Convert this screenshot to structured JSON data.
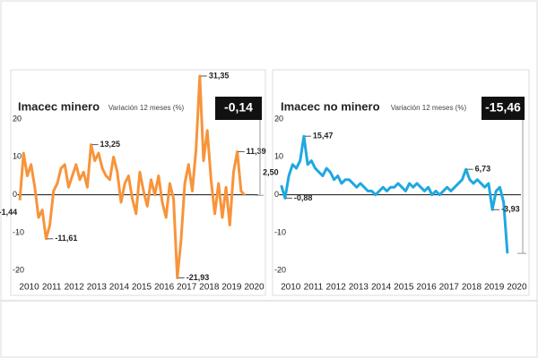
{
  "chart_data": [
    {
      "type": "line",
      "title": "Imacec minero",
      "subtitle": "Variación 12 meses (%)",
      "color": "#f7943b",
      "categories": [
        "2010",
        null,
        null,
        null,
        null,
        null,
        "2011",
        null,
        null,
        null,
        null,
        null,
        "2012",
        null,
        null,
        null,
        null,
        null,
        "2013",
        null,
        null,
        null,
        null,
        null,
        "2014",
        null,
        null,
        null,
        null,
        null,
        "2015",
        null,
        null,
        null,
        null,
        null,
        "2016",
        null,
        null,
        null,
        null,
        null,
        "2017",
        null,
        null,
        null,
        null,
        null,
        "2018",
        null,
        null,
        null,
        null,
        null,
        "2019",
        null,
        null,
        null,
        null,
        null,
        "2020"
      ],
      "values": [
        -1.44,
        11,
        5,
        8,
        2,
        -6,
        -4,
        -11.61,
        -8,
        1,
        3,
        7,
        8,
        2,
        5,
        8,
        4,
        6,
        2,
        13.25,
        9,
        11,
        7,
        5,
        4,
        10,
        6,
        -2,
        3,
        5,
        -1,
        -5,
        6,
        1,
        -3,
        4,
        0,
        5,
        -2,
        -6,
        3,
        -1,
        -21.93,
        -12,
        3,
        8,
        1,
        12,
        31.35,
        9,
        17,
        4,
        -5,
        3,
        -6,
        2,
        -8,
        6,
        11.39,
        1,
        -0.14
      ],
      "value_labels": [
        "-1,44",
        null,
        null,
        null,
        null,
        null,
        null,
        "-11,61",
        null,
        null,
        null,
        null,
        null,
        null,
        null,
        null,
        null,
        null,
        null,
        "13,25",
        null,
        null,
        null,
        null,
        null,
        null,
        null,
        null,
        null,
        null,
        null,
        null,
        null,
        null,
        null,
        null,
        null,
        null,
        null,
        null,
        null,
        null,
        "-21,93",
        null,
        null,
        null,
        null,
        null,
        "31,35",
        null,
        null,
        null,
        null,
        null,
        null,
        null,
        null,
        null,
        "11,39",
        null,
        "-0,14"
      ],
      "ylim": [
        -23,
        33
      ],
      "yticks": [
        20,
        10,
        0,
        -10,
        -20
      ],
      "grid": false
    },
    {
      "type": "line",
      "title": "Imacec no minero",
      "subtitle": "Variación 12 meses (%)",
      "color": "#1fa8e0",
      "categories": [
        "2010",
        null,
        null,
        null,
        null,
        null,
        "2011",
        null,
        null,
        null,
        null,
        null,
        "2012",
        null,
        null,
        null,
        null,
        null,
        "2013",
        null,
        null,
        null,
        null,
        null,
        "2014",
        null,
        null,
        null,
        null,
        null,
        "2015",
        null,
        null,
        null,
        null,
        null,
        "2016",
        null,
        null,
        null,
        null,
        null,
        "2017",
        null,
        null,
        null,
        null,
        null,
        "2018",
        null,
        null,
        null,
        null,
        null,
        "2019",
        null,
        null,
        null,
        null,
        null,
        "2020"
      ],
      "values": [
        2.5,
        -0.88,
        5,
        8,
        7,
        9,
        15.47,
        8,
        9,
        7,
        6,
        5,
        7,
        6,
        4,
        5,
        3,
        4,
        4,
        3,
        2,
        3,
        2,
        1,
        1,
        0,
        1,
        2,
        1,
        2,
        2,
        3,
        2,
        1,
        3,
        2,
        3,
        2,
        1,
        2,
        0,
        1,
        0,
        1,
        2,
        1,
        2,
        3,
        4,
        6.73,
        4,
        3,
        4,
        3,
        2,
        3,
        -3.93,
        1,
        2,
        -2,
        -15.46
      ],
      "value_labels": [
        "2,50",
        "-0,88",
        null,
        null,
        null,
        null,
        "15,47",
        null,
        null,
        null,
        null,
        null,
        null,
        null,
        null,
        null,
        null,
        null,
        null,
        null,
        null,
        null,
        null,
        null,
        null,
        null,
        null,
        null,
        null,
        null,
        null,
        null,
        null,
        null,
        null,
        null,
        null,
        null,
        null,
        null,
        null,
        null,
        null,
        null,
        null,
        null,
        null,
        null,
        null,
        "6,73",
        null,
        null,
        null,
        null,
        null,
        null,
        "-3,93",
        null,
        null,
        null,
        "-15,46"
      ],
      "ylim": [
        -23,
        33
      ],
      "yticks": [
        20,
        10,
        0,
        -10,
        -20
      ],
      "grid": false
    }
  ]
}
